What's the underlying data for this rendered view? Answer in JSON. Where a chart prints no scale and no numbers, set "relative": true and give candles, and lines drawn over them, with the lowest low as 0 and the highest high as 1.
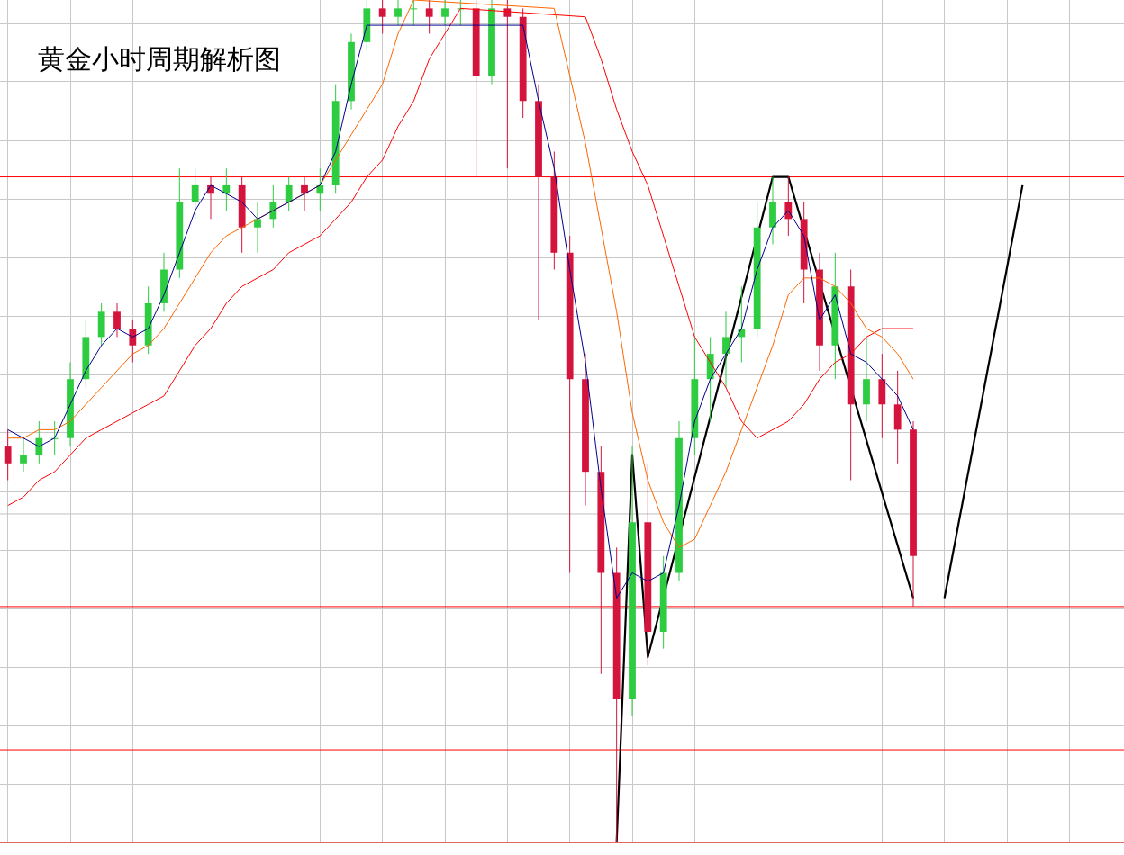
{
  "chart_data": {
    "type": "candlestick",
    "title": "黄金小时周期解析图",
    "relative": true,
    "grid": true,
    "legend": false,
    "categories": [
      null,
      null,
      null,
      null,
      null,
      null,
      null,
      null,
      null,
      null,
      null,
      null,
      null,
      null,
      null,
      null,
      null,
      null,
      null,
      null,
      null,
      null,
      null,
      null,
      null,
      null,
      null,
      null,
      null,
      null,
      null,
      null,
      null,
      null,
      null,
      null,
      null,
      null,
      null,
      null,
      null,
      null,
      null,
      null,
      null,
      null,
      null,
      null,
      null,
      null,
      null,
      null,
      null,
      null,
      null,
      null,
      null,
      null,
      null,
      null,
      null,
      null,
      null,
      null,
      null,
      null,
      null,
      null,
      null,
      null,
      null,
      null
    ],
    "ohlc": [
      [
        0.47,
        0.49,
        0.43,
        0.45
      ],
      [
        0.45,
        0.48,
        0.44,
        0.46
      ],
      [
        0.46,
        0.5,
        0.45,
        0.48
      ],
      [
        0.48,
        0.5,
        0.46,
        0.48
      ],
      [
        0.48,
        0.57,
        0.47,
        0.55
      ],
      [
        0.55,
        0.62,
        0.54,
        0.6
      ],
      [
        0.6,
        0.64,
        0.59,
        0.63
      ],
      [
        0.63,
        0.64,
        0.6,
        0.61
      ],
      [
        0.61,
        0.62,
        0.57,
        0.59
      ],
      [
        0.59,
        0.66,
        0.58,
        0.64
      ],
      [
        0.64,
        0.7,
        0.63,
        0.68
      ],
      [
        0.68,
        0.8,
        0.67,
        0.76
      ],
      [
        0.76,
        0.8,
        0.74,
        0.78
      ],
      [
        0.78,
        0.79,
        0.74,
        0.77
      ],
      [
        0.77,
        0.8,
        0.75,
        0.78
      ],
      [
        0.78,
        0.79,
        0.7,
        0.73
      ],
      [
        0.73,
        0.76,
        0.7,
        0.74
      ],
      [
        0.74,
        0.78,
        0.73,
        0.76
      ],
      [
        0.76,
        0.79,
        0.75,
        0.78
      ],
      [
        0.78,
        0.79,
        0.75,
        0.77
      ],
      [
        0.77,
        0.8,
        0.75,
        0.78
      ],
      [
        0.78,
        0.9,
        0.77,
        0.88
      ],
      [
        0.88,
        0.96,
        0.87,
        0.95
      ],
      [
        0.95,
        1,
        0.94,
        0.99
      ],
      [
        0.99,
        1,
        0.96,
        0.98
      ],
      [
        0.98,
        1,
        0.97,
        0.99
      ],
      [
        0.99,
        1,
        0.97,
        0.99
      ],
      [
        0.99,
        1,
        0.96,
        0.98
      ],
      [
        0.98,
        1,
        0.97,
        0.99
      ],
      [
        0.99,
        1,
        0.97,
        0.99
      ],
      [
        0.99,
        1,
        0.79,
        0.91
      ],
      [
        0.91,
        1,
        0.9,
        0.99
      ],
      [
        0.99,
        1,
        0.8,
        0.98
      ],
      [
        0.98,
        0.99,
        0.86,
        0.88
      ],
      [
        0.88,
        0.9,
        0.62,
        0.79
      ],
      [
        0.79,
        0.82,
        0.68,
        0.7
      ],
      [
        0.7,
        0.72,
        0.32,
        0.55
      ],
      [
        0.55,
        0.58,
        0.4,
        0.44
      ],
      [
        0.44,
        0.47,
        0.2,
        0.32
      ],
      [
        0.32,
        0.35,
        0,
        0.17
      ],
      [
        0.17,
        0.47,
        0.15,
        0.38
      ],
      [
        0.38,
        0.45,
        0.21,
        0.25
      ],
      [
        0.25,
        0.34,
        0.23,
        0.32
      ],
      [
        0.32,
        0.5,
        0.31,
        0.48
      ],
      [
        0.48,
        0.6,
        0.46,
        0.55
      ],
      [
        0.55,
        0.6,
        0.5,
        0.58
      ],
      [
        0.58,
        0.63,
        0.54,
        0.6
      ],
      [
        0.6,
        0.66,
        0.57,
        0.61
      ],
      [
        0.61,
        0.76,
        0.6,
        0.73
      ],
      [
        0.73,
        0.79,
        0.71,
        0.76
      ],
      [
        0.76,
        0.79,
        0.72,
        0.74
      ],
      [
        0.74,
        0.76,
        0.64,
        0.68
      ],
      [
        0.68,
        0.7,
        0.56,
        0.59
      ],
      [
        0.59,
        0.7,
        0.55,
        0.66
      ],
      [
        0.66,
        0.68,
        0.43,
        0.52
      ],
      [
        0.52,
        0.6,
        0.5,
        0.55
      ],
      [
        0.55,
        0.58,
        0.48,
        0.52
      ],
      [
        0.52,
        0.56,
        0.45,
        0.49
      ],
      [
        0.49,
        0.5,
        0.28,
        0.34
      ],
      null,
      null,
      null,
      null,
      null,
      null,
      null,
      null,
      null,
      null,
      null,
      null,
      null
    ],
    "colors": [
      "#d4143c",
      "#2ecc40",
      "#2ecc40",
      "#2ecc40",
      "#2ecc40",
      "#2ecc40",
      "#2ecc40",
      "#d4143c",
      "#d4143c",
      "#2ecc40",
      "#2ecc40",
      "#2ecc40",
      "#2ecc40",
      "#d4143c",
      "#2ecc40",
      "#d4143c",
      "#2ecc40",
      "#2ecc40",
      "#2ecc40",
      "#d4143c",
      "#2ecc40",
      "#2ecc40",
      "#2ecc40",
      "#2ecc40",
      "#d4143c",
      "#2ecc40",
      "#2ecc40",
      "#d4143c",
      "#2ecc40",
      "#2ecc40",
      "#d4143c",
      "#2ecc40",
      "#d4143c",
      "#d4143c",
      "#d4143c",
      "#d4143c",
      "#d4143c",
      "#d4143c",
      "#d4143c",
      "#d4143c",
      "#2ecc40",
      "#d4143c",
      "#2ecc40",
      "#2ecc40",
      "#2ecc40",
      "#2ecc40",
      "#2ecc40",
      "#2ecc40",
      "#2ecc40",
      "#2ecc40",
      "#d4143c",
      "#d4143c",
      "#d4143c",
      "#2ecc40",
      "#d4143c",
      "#2ecc40",
      "#d4143c",
      "#d4143c",
      "#d4143c",
      null,
      null,
      null,
      null,
      null,
      null,
      null,
      null,
      null,
      null,
      null,
      null,
      null
    ],
    "series": [
      {
        "type": "line",
        "color": "#00008b",
        "values": [
          0.49,
          0.48,
          0.47,
          0.48,
          0.52,
          0.56,
          0.59,
          0.61,
          0.6,
          0.61,
          0.65,
          0.7,
          0.75,
          0.78,
          0.77,
          0.76,
          0.74,
          0.75,
          0.76,
          0.77,
          0.78,
          0.82,
          0.9,
          0.97,
          null,
          null,
          null,
          null,
          null,
          null,
          null,
          null,
          null,
          0.97,
          0.88,
          0.8,
          0.68,
          0.57,
          0.42,
          0.29,
          0.32,
          0.31,
          0.32,
          0.4,
          0.5,
          0.55,
          0.58,
          0.61,
          0.68,
          0.73,
          0.75,
          0.72,
          0.62,
          0.65,
          0.58,
          0.57,
          0.55,
          0.53,
          0.49,
          null,
          null,
          null,
          null,
          null,
          null,
          null,
          null,
          null,
          null,
          null,
          null,
          null
        ]
      },
      {
        "type": "line",
        "color": "#ff6600",
        "values": [
          0.48,
          0.48,
          0.49,
          0.49,
          0.5,
          0.52,
          0.54,
          0.56,
          0.58,
          0.59,
          0.61,
          0.64,
          0.67,
          0.7,
          0.72,
          0.73,
          0.74,
          0.75,
          0.76,
          0.77,
          0.78,
          0.81,
          0.84,
          0.87,
          0.9,
          0.96,
          1,
          null,
          null,
          null,
          null,
          null,
          null,
          null,
          null,
          0.99,
          0.91,
          0.83,
          0.73,
          0.63,
          0.51,
          0.43,
          0.38,
          0.35,
          0.36,
          0.4,
          0.44,
          0.49,
          0.54,
          0.59,
          0.65,
          0.67,
          0.67,
          0.66,
          0.64,
          0.61,
          0.6,
          0.58,
          0.55,
          null,
          null,
          null,
          null,
          null,
          null,
          null,
          null,
          null,
          null,
          null,
          null,
          null
        ]
      },
      {
        "type": "line",
        "color": "#ff0000",
        "values": [
          0.4,
          0.41,
          0.43,
          0.44,
          0.46,
          0.48,
          0.49,
          0.5,
          0.51,
          0.52,
          0.53,
          0.56,
          0.59,
          0.61,
          0.64,
          0.66,
          0.67,
          0.68,
          0.7,
          0.71,
          0.72,
          0.74,
          0.76,
          0.79,
          0.81,
          0.85,
          0.88,
          0.93,
          0.96,
          0.99,
          null,
          null,
          null,
          null,
          null,
          null,
          null,
          0.98,
          0.93,
          0.87,
          0.82,
          0.78,
          0.72,
          0.66,
          0.6,
          0.57,
          0.54,
          0.5,
          0.48,
          0.49,
          0.5,
          0.52,
          0.55,
          0.57,
          0.58,
          0.6,
          0.61,
          0.61,
          0.61,
          null,
          null,
          null,
          null,
          null,
          null,
          null,
          null,
          null,
          null,
          null,
          null,
          null
        ]
      },
      {
        "type": "line",
        "color": "#000000",
        "values": [
          null,
          null,
          null,
          null,
          null,
          null,
          null,
          null,
          null,
          null,
          null,
          null,
          null,
          null,
          null,
          null,
          null,
          null,
          null,
          null,
          null,
          null,
          null,
          null,
          null,
          null,
          null,
          null,
          null,
          null,
          null,
          null,
          null,
          null,
          null,
          null,
          null,
          null,
          null,
          0,
          0.46,
          0.22,
          null,
          null,
          null,
          null,
          null,
          null,
          null,
          0.79,
          0.79,
          null,
          null,
          null,
          null,
          null,
          null,
          null,
          0.29,
          null,
          null,
          null,
          null,
          null,
          null,
          null,
          null,
          null,
          null,
          null,
          null,
          null
        ]
      },
      {
        "type": "line",
        "color": "#000000",
        "values": [
          null,
          null,
          null,
          null,
          null,
          null,
          null,
          null,
          null,
          null,
          null,
          null,
          null,
          null,
          null,
          null,
          null,
          null,
          null,
          null,
          null,
          null,
          null,
          null,
          null,
          null,
          null,
          null,
          null,
          null,
          null,
          null,
          null,
          null,
          null,
          null,
          null,
          null,
          null,
          null,
          null,
          null,
          null,
          null,
          null,
          null,
          null,
          null,
          null,
          null,
          null,
          null,
          null,
          null,
          null,
          null,
          null,
          null,
          null,
          null,
          0.29,
          null,
          null,
          null,
          null,
          0.78,
          null,
          null,
          null,
          null,
          null,
          null
        ]
      }
    ],
    "ref_lines": [
      {
        "axis": "y",
        "value": 0.79,
        "color": "#ff0000"
      },
      {
        "axis": "y",
        "value": 0.39,
        "color": "#c0c0c0"
      },
      {
        "axis": "y",
        "value": 0.28,
        "color": "#ff0000"
      },
      {
        "axis": "y",
        "value": 0.11,
        "color": "#ff0000"
      },
      {
        "axis": "y",
        "value": 0,
        "color": "#ff0000"
      }
    ]
  }
}
